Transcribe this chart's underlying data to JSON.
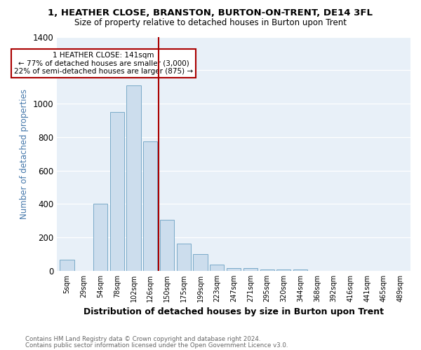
{
  "title": "1, HEATHER CLOSE, BRANSTON, BURTON-ON-TRENT, DE14 3FL",
  "subtitle": "Size of property relative to detached houses in Burton upon Trent",
  "xlabel": "Distribution of detached houses by size in Burton upon Trent",
  "ylabel": "Number of detached properties",
  "bar_labels": [
    "5sqm",
    "29sqm",
    "54sqm",
    "78sqm",
    "102sqm",
    "126sqm",
    "150sqm",
    "175sqm",
    "199sqm",
    "223sqm",
    "247sqm",
    "271sqm",
    "295sqm",
    "320sqm",
    "344sqm",
    "368sqm",
    "392sqm",
    "416sqm",
    "441sqm",
    "465sqm",
    "489sqm"
  ],
  "bar_values": [
    65,
    0,
    400,
    950,
    1110,
    775,
    305,
    165,
    100,
    38,
    15,
    15,
    10,
    8,
    10,
    0,
    0,
    0,
    0,
    0,
    0
  ],
  "bar_color": "#ccdded",
  "bar_edgecolor": "#7aaac8",
  "vline_color": "#aa0000",
  "annotation_text": "1 HEATHER CLOSE: 141sqm\n← 77% of detached houses are smaller (3,000)\n22% of semi-detached houses are larger (875) →",
  "annotation_box_color": "#ffffff",
  "annotation_box_edgecolor": "#aa0000",
  "ylim": [
    0,
    1400
  ],
  "yticks": [
    0,
    200,
    400,
    600,
    800,
    1000,
    1200,
    1400
  ],
  "footer1": "Contains HM Land Registry data © Crown copyright and database right 2024.",
  "footer2": "Contains public sector information licensed under the Open Government Licence v3.0.",
  "plot_bg_color": "#e8f0f8"
}
